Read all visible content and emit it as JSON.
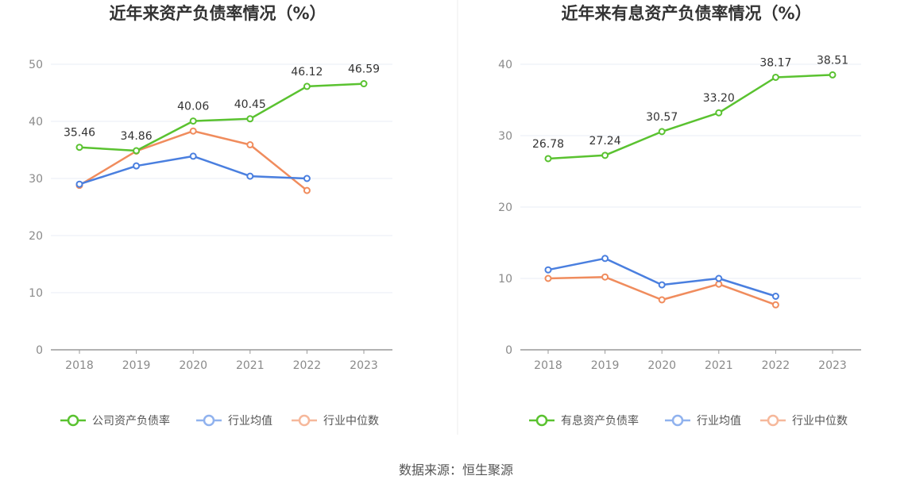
{
  "source_label": "数据来源：恒生聚源",
  "colors": {
    "green": "#5ac230",
    "blue": "#4a7fdf",
    "orange": "#f08c5d",
    "grid": "#e8ecf5",
    "axis": "#999999"
  },
  "chart_data": [
    {
      "type": "line",
      "title": "近年来资产负债率情况（%）",
      "categories": [
        "2018",
        "2019",
        "2020",
        "2021",
        "2022",
        "2023"
      ],
      "ylim": [
        0,
        50
      ],
      "yticks": [
        "0",
        "10",
        "20",
        "30",
        "40",
        "50"
      ],
      "grid": true,
      "legend_position": "bottom",
      "series": [
        {
          "name": "公司资产负债率",
          "color": "#5ac230",
          "values": [
            35.46,
            34.86,
            40.06,
            40.45,
            46.12,
            46.59
          ],
          "labels": [
            "35.46",
            "34.86",
            "40.06",
            "40.45",
            "46.12",
            "46.59"
          ]
        },
        {
          "name": "行业均值",
          "color": "#4a7fdf",
          "values": [
            29.0,
            32.2,
            33.9,
            30.4,
            30.0,
            null
          ]
        },
        {
          "name": "行业中位数",
          "color": "#f08c5d",
          "values": [
            28.8,
            34.8,
            38.3,
            35.9,
            27.9,
            null
          ]
        }
      ]
    },
    {
      "type": "line",
      "title": "近年来有息资产负债率情况（%）",
      "categories": [
        "2018",
        "2019",
        "2020",
        "2021",
        "2022",
        "2023"
      ],
      "ylim": [
        0,
        40
      ],
      "yticks": [
        "0",
        "10",
        "20",
        "30",
        "40"
      ],
      "grid": true,
      "legend_position": "bottom",
      "series": [
        {
          "name": "有息资产负债率",
          "color": "#5ac230",
          "values": [
            26.78,
            27.24,
            30.57,
            33.2,
            38.17,
            38.51
          ],
          "labels": [
            "26.78",
            "27.24",
            "30.57",
            "33.20",
            "38.17",
            "38.51"
          ]
        },
        {
          "name": "行业均值",
          "color": "#4a7fdf",
          "values": [
            11.2,
            12.8,
            9.1,
            10.0,
            7.5,
            null
          ]
        },
        {
          "name": "行业中位数",
          "color": "#f08c5d",
          "values": [
            10.0,
            10.2,
            7.0,
            9.2,
            6.3,
            null
          ]
        }
      ]
    }
  ]
}
